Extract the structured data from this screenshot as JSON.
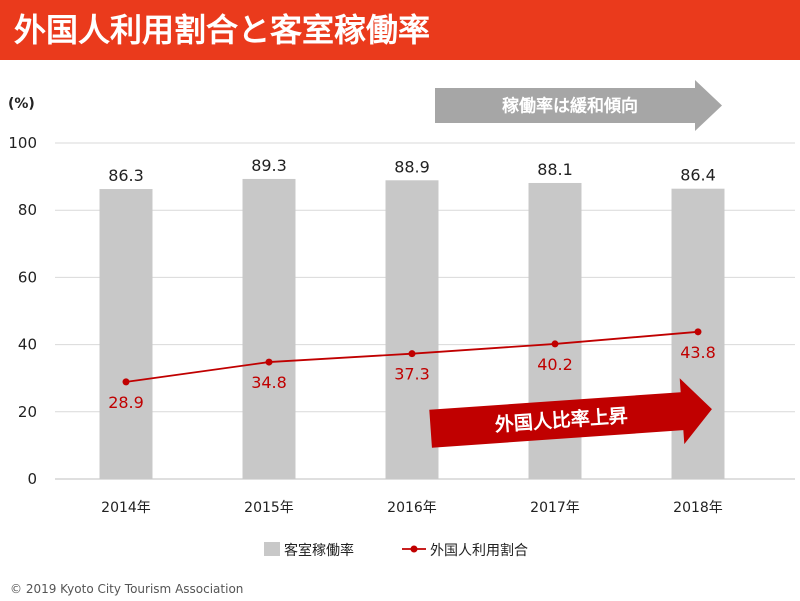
{
  "title": "外国人利用割合と客室稼働率",
  "colors": {
    "title_bg": "#ea3a1c",
    "bar": "#c8c8c8",
    "line": "#c00000",
    "gray_arrow": "#a6a6a6",
    "red_arrow": "#c00000",
    "grid": "#d9d9d9"
  },
  "chart_data": {
    "type": "bar",
    "unit_label": "(%)",
    "categories": [
      "2014年",
      "2015年",
      "2016年",
      "2017年",
      "2018年"
    ],
    "series": [
      {
        "name": "客室稼働率",
        "type": "bar",
        "values": [
          86.3,
          89.3,
          88.9,
          88.1,
          86.4
        ]
      },
      {
        "name": "外国人利用割合",
        "type": "line",
        "values": [
          28.9,
          34.8,
          37.3,
          40.2,
          43.8
        ]
      }
    ],
    "ylim": [
      0,
      100
    ],
    "yticks": [
      0,
      20,
      40,
      60,
      80,
      100
    ],
    "grid": true,
    "legend_position": "bottom",
    "annotations": {
      "gray_arrow_text": "稼働率は緩和傾向",
      "red_arrow_text": "外国人比率上昇"
    }
  },
  "footer": "© 2019 Kyoto City Tourism Association"
}
